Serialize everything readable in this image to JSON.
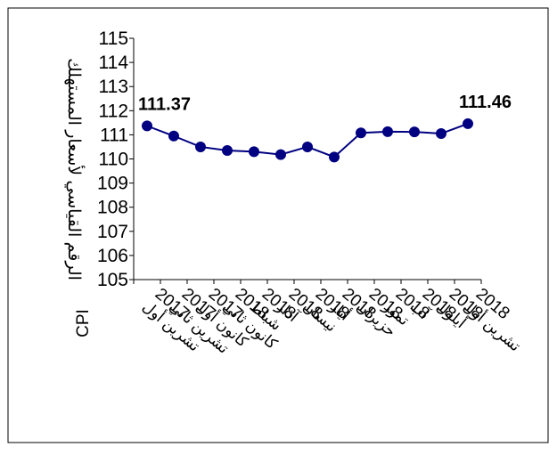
{
  "chart_data": {
    "type": "line",
    "title": "",
    "ylabel": "الرقم القياسي لأسعار المستهلك",
    "ylabel_suffix": "CPI",
    "xlabel": "",
    "ylim": [
      105,
      115
    ],
    "yticks": [
      "105",
      "106",
      "107",
      "108",
      "109",
      "110",
      "111",
      "112",
      "113",
      "114",
      "115"
    ],
    "grid": false,
    "legend": "none",
    "line_color": "#000080",
    "marker_color": "#000080",
    "categories": [
      {
        "year": "2017",
        "month": "تشرين أول"
      },
      {
        "year": "2017",
        "month": "تشرين ثاني"
      },
      {
        "year": "2017",
        "month": "كانون أول"
      },
      {
        "year": "2018",
        "month": "كانون ثاني"
      },
      {
        "year": "2018",
        "month": "شباط"
      },
      {
        "year": "2018",
        "month": "آذار"
      },
      {
        "year": "2018",
        "month": "نيسان"
      },
      {
        "year": "2018",
        "month": "أيار"
      },
      {
        "year": "2018",
        "month": "حزيران"
      },
      {
        "year": "2018",
        "month": "تموز"
      },
      {
        "year": "2018",
        "month": "آب"
      },
      {
        "year": "2018",
        "month": "أيلول"
      },
      {
        "year": "2018",
        "month": "تشرين أول"
      }
    ],
    "values": [
      111.37,
      110.95,
      110.5,
      110.35,
      110.3,
      110.18,
      110.5,
      110.08,
      111.08,
      111.13,
      111.12,
      111.05,
      111.46
    ],
    "data_labels": [
      {
        "index": 0,
        "text": "111.37"
      },
      {
        "index": 12,
        "text": "111.46"
      }
    ]
  }
}
